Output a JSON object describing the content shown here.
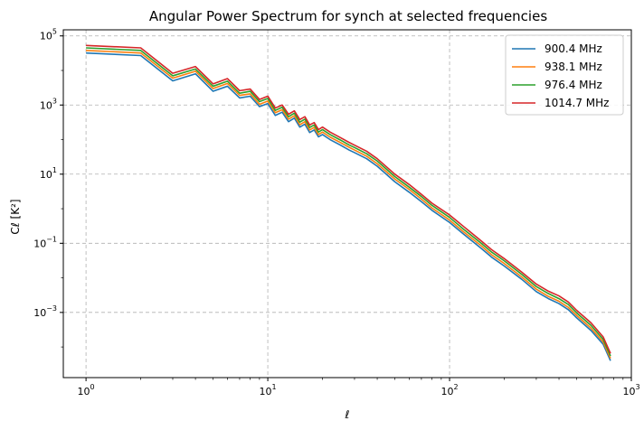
{
  "chart_data": {
    "type": "line",
    "title": "Angular Power Spectrum for synch at selected frequencies",
    "xlabel": "ℓ",
    "ylabel": "Cℓ [K²]",
    "xscale": "log",
    "yscale": "log",
    "xlim": [
      0.75,
      1000
    ],
    "ylim": [
      1.3e-05,
      150000
    ],
    "grid": true,
    "legend_position": "top-right",
    "x_ticks": [
      {
        "value": 1,
        "base": "10",
        "exp": "0"
      },
      {
        "value": 10,
        "base": "10",
        "exp": "1"
      },
      {
        "value": 100,
        "base": "10",
        "exp": "2"
      },
      {
        "value": 1000,
        "base": "10",
        "exp": "3"
      }
    ],
    "y_ticks": [
      {
        "value": 0.001,
        "base": "10",
        "exp": "−3"
      },
      {
        "value": 0.1,
        "base": "10",
        "exp": "−1"
      },
      {
        "value": 10,
        "base": "10",
        "exp": "1"
      },
      {
        "value": 1000,
        "base": "10",
        "exp": "3"
      },
      {
        "value": 100000,
        "base": "10",
        "exp": "5"
      }
    ],
    "x": [
      1,
      2,
      3,
      4,
      5,
      6,
      7,
      8,
      9,
      10,
      11,
      12,
      13,
      14,
      15,
      16,
      17,
      18,
      19,
      20,
      22,
      25,
      28,
      30,
      35,
      40,
      50,
      60,
      70,
      80,
      100,
      120,
      150,
      170,
      200,
      250,
      300,
      350,
      400,
      450,
      500,
      600,
      700,
      768
    ],
    "series": [
      {
        "name": "900.4 MHz",
        "color": "#1f77b4",
        "values": [
          32000,
          27000,
          5000,
          8000,
          2500,
          3500,
          1600,
          1800,
          900,
          1100,
          500,
          620,
          330,
          420,
          230,
          280,
          160,
          190,
          120,
          140,
          100,
          70,
          50,
          42,
          28,
          17,
          6,
          3,
          1.6,
          0.9,
          0.4,
          0.18,
          0.07,
          0.04,
          0.022,
          0.009,
          0.004,
          0.0025,
          0.0018,
          0.0012,
          0.0007,
          0.0003,
          0.00012,
          4e-05
        ]
      },
      {
        "name": "938.1 MHz",
        "color": "#ff7f0e",
        "values": [
          38000,
          32000,
          6000,
          9500,
          3000,
          4200,
          1900,
          2100,
          1050,
          1300,
          600,
          730,
          390,
          490,
          270,
          330,
          190,
          225,
          140,
          165,
          118,
          83,
          60,
          50,
          33,
          20,
          7.2,
          3.6,
          1.9,
          1.05,
          0.47,
          0.21,
          0.083,
          0.047,
          0.026,
          0.0105,
          0.0047,
          0.0029,
          0.0021,
          0.0014,
          0.00082,
          0.00035,
          0.00014,
          4.7e-05
        ]
      },
      {
        "name": "976.4 MHz",
        "color": "#2ca02c",
        "values": [
          45000,
          38000,
          7000,
          11000,
          3500,
          4900,
          2200,
          2500,
          1250,
          1550,
          700,
          860,
          460,
          580,
          320,
          390,
          225,
          265,
          165,
          195,
          140,
          98,
          70,
          59,
          39,
          24,
          8.5,
          4.2,
          2.25,
          1.25,
          0.56,
          0.25,
          0.098,
          0.056,
          0.031,
          0.0125,
          0.0056,
          0.0035,
          0.0025,
          0.0017,
          0.00097,
          0.00042,
          0.000165,
          5.5e-05
        ]
      },
      {
        "name": "1014.7 MHz",
        "color": "#d62728",
        "values": [
          53000,
          45000,
          8300,
          13000,
          4100,
          5800,
          2600,
          2900,
          1450,
          1800,
          820,
          1000,
          540,
          680,
          380,
          460,
          265,
          310,
          195,
          230,
          165,
          115,
          83,
          69,
          46,
          28,
          10,
          5,
          2.6,
          1.45,
          0.66,
          0.3,
          0.115,
          0.066,
          0.036,
          0.0145,
          0.0066,
          0.0041,
          0.003,
          0.002,
          0.00115,
          0.0005,
          0.000195,
          6.5e-05
        ]
      }
    ]
  }
}
